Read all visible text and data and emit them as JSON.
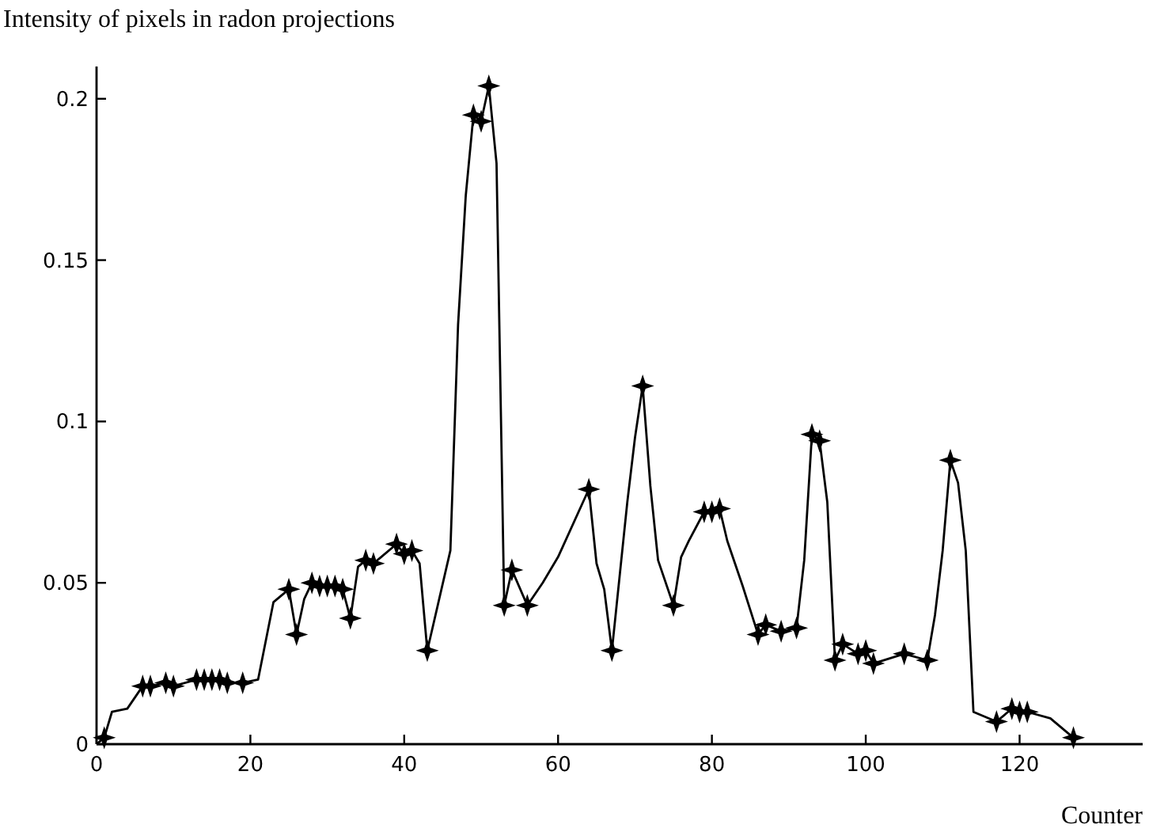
{
  "chart_data": {
    "type": "line",
    "title": "Intensity of pixels in radon projections",
    "xlabel": "Counter",
    "xlim": [
      0,
      136
    ],
    "ylim": [
      0,
      0.21
    ],
    "xticks": [
      0,
      20,
      40,
      60,
      80,
      100,
      120
    ],
    "yticks": [
      0,
      0.05,
      0.1,
      0.15,
      0.2
    ],
    "grid": false,
    "series": [
      {
        "color": "#000000",
        "marker": "none",
        "line_style": "solid",
        "x": [
          0,
          1,
          2,
          4,
          6,
          7,
          9,
          10,
          13,
          14,
          15,
          16,
          17,
          19,
          21,
          23,
          25,
          26,
          27,
          28,
          29,
          30,
          31,
          32,
          33,
          34,
          35,
          36,
          37,
          39,
          40,
          41,
          42,
          43,
          46,
          47,
          48,
          49,
          50,
          51,
          52,
          53,
          54,
          56,
          58,
          60,
          64,
          65,
          66,
          67,
          69,
          70,
          71,
          72,
          73,
          75,
          76,
          77,
          79,
          80,
          81,
          82,
          84,
          86,
          87,
          89,
          91,
          92,
          93,
          94,
          95,
          96,
          97,
          99,
          100,
          101,
          105,
          108,
          109,
          110,
          111,
          112,
          113,
          114,
          117,
          119,
          120,
          121,
          124,
          127
        ],
        "values": [
          0,
          0.002,
          0.01,
          0.011,
          0.018,
          0.018,
          0.019,
          0.018,
          0.02,
          0.02,
          0.02,
          0.02,
          0.019,
          0.019,
          0.02,
          0.044,
          0.048,
          0.034,
          0.045,
          0.05,
          0.049,
          0.049,
          0.049,
          0.048,
          0.039,
          0.055,
          0.057,
          0.056,
          0.058,
          0.062,
          0.059,
          0.06,
          0.056,
          0.029,
          0.06,
          0.13,
          0.17,
          0.195,
          0.193,
          0.204,
          0.18,
          0.043,
          0.054,
          0.043,
          0.05,
          0.058,
          0.079,
          0.056,
          0.048,
          0.029,
          0.075,
          0.095,
          0.111,
          0.08,
          0.057,
          0.043,
          0.058,
          0.063,
          0.072,
          0.072,
          0.073,
          0.063,
          0.049,
          0.034,
          0.037,
          0.035,
          0.036,
          0.057,
          0.096,
          0.094,
          0.075,
          0.026,
          0.031,
          0.028,
          0.029,
          0.025,
          0.028,
          0.026,
          0.04,
          0.06,
          0.088,
          0.081,
          0.06,
          0.01,
          0.007,
          0.011,
          0.01,
          0.01,
          0.008,
          0.002
        ]
      },
      {
        "type": "scatter",
        "color": "#000000",
        "marker": "star",
        "x": [
          1,
          6,
          7,
          9,
          10,
          13,
          14,
          15,
          16,
          17,
          19,
          25,
          26,
          28,
          29,
          30,
          31,
          32,
          33,
          35,
          36,
          39,
          40,
          41,
          43,
          49,
          50,
          51,
          53,
          54,
          56,
          64,
          67,
          71,
          75,
          79,
          80,
          81,
          86,
          87,
          89,
          91,
          93,
          94,
          96,
          97,
          99,
          100,
          101,
          105,
          108,
          111,
          117,
          119,
          120,
          121,
          127
        ],
        "values": [
          0.002,
          0.018,
          0.018,
          0.019,
          0.018,
          0.02,
          0.02,
          0.02,
          0.02,
          0.019,
          0.019,
          0.048,
          0.034,
          0.05,
          0.049,
          0.049,
          0.049,
          0.048,
          0.039,
          0.057,
          0.056,
          0.062,
          0.059,
          0.06,
          0.029,
          0.195,
          0.193,
          0.204,
          0.043,
          0.054,
          0.043,
          0.079,
          0.029,
          0.111,
          0.043,
          0.072,
          0.072,
          0.073,
          0.034,
          0.037,
          0.035,
          0.036,
          0.096,
          0.094,
          0.026,
          0.031,
          0.028,
          0.029,
          0.025,
          0.028,
          0.026,
          0.088,
          0.007,
          0.011,
          0.01,
          0.01,
          0.002
        ]
      }
    ]
  }
}
